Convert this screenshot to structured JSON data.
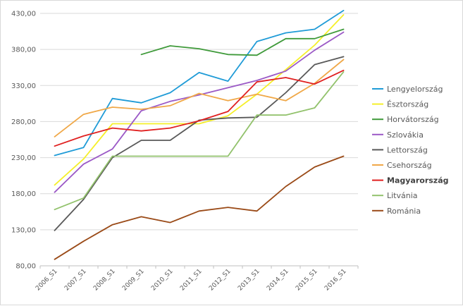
{
  "chart_data": {
    "type": "line",
    "title": "",
    "xlabel": "",
    "ylabel": "",
    "ylim": [
      80,
      430
    ],
    "y_ticks": [
      "80,00",
      "130,00",
      "180,00",
      "230,00",
      "280,00",
      "330,00",
      "380,00",
      "430,00"
    ],
    "y_tick_values": [
      80,
      130,
      180,
      230,
      280,
      330,
      380,
      430
    ],
    "categories": [
      "2006_S1",
      "2007_S1",
      "2008_S1",
      "2009_S1",
      "2010_S1",
      "2011_S1",
      "2012_S1",
      "2013_S1",
      "2014_S1",
      "2015_S1",
      "2016_S1"
    ],
    "grid": "horizontal",
    "legend_position": "right",
    "series": [
      {
        "name": "Lengyelország",
        "color": "#1f9bd7",
        "bold": false,
        "values": [
          233,
          244,
          312,
          306,
          320,
          348,
          336,
          391,
          403,
          408,
          434
        ]
      },
      {
        "name": "Észtország",
        "color": "#f5ef2a",
        "bold": false,
        "values": [
          192,
          228,
          277,
          277,
          277,
          277,
          288,
          318,
          352,
          386,
          428
        ]
      },
      {
        "name": "Horvátország",
        "color": "#3f9a3a",
        "bold": false,
        "values": [
          null,
          null,
          null,
          373,
          385,
          381,
          373,
          372,
          395,
          395,
          408
        ]
      },
      {
        "name": "Szlovákia",
        "color": "#9b59c6",
        "bold": false,
        "values": [
          182,
          221,
          242,
          295,
          308,
          317,
          327,
          337,
          350,
          379,
          404
        ]
      },
      {
        "name": "Lettország",
        "color": "#595959",
        "bold": false,
        "values": [
          129,
          172,
          230,
          254,
          254,
          282,
          285,
          286,
          320,
          359,
          370
        ]
      },
      {
        "name": "Csehország",
        "color": "#f0a848",
        "bold": false,
        "values": [
          259,
          290,
          300,
          297,
          302,
          319,
          309,
          318,
          309,
          333,
          366
        ]
      },
      {
        "name": "Magyarország",
        "color": "#e02020",
        "bold": true,
        "values": [
          246,
          260,
          271,
          267,
          271,
          281,
          294,
          335,
          341,
          332,
          351
        ]
      },
      {
        "name": "Litvánia",
        "color": "#92c26c",
        "bold": false,
        "values": [
          158,
          174,
          232,
          232,
          232,
          232,
          232,
          289,
          289,
          299,
          349
        ]
      },
      {
        "name": "Románia",
        "color": "#9a4a17",
        "bold": false,
        "values": [
          89,
          114,
          137,
          148,
          140,
          156,
          161,
          156,
          190,
          217,
          232
        ]
      }
    ]
  }
}
